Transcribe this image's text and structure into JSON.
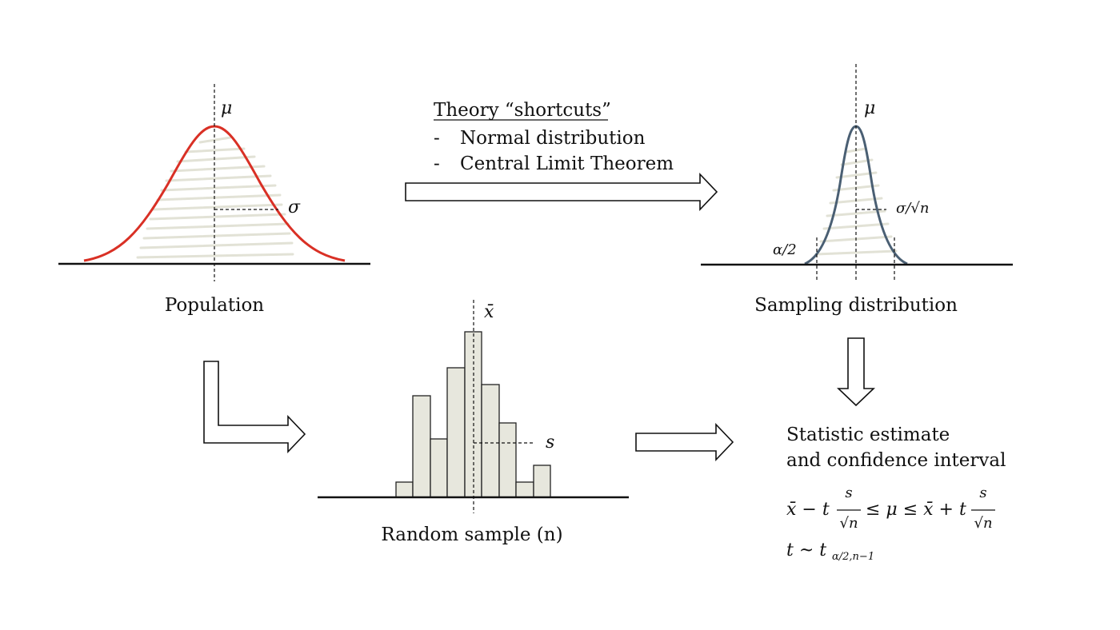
{
  "population": {
    "label": "Population",
    "mean_symbol": "μ",
    "sd_symbol": "σ",
    "curve_color": "#d93025"
  },
  "theory": {
    "heading": "Theory “shortcuts”",
    "items": [
      {
        "bullet": "-",
        "text": "Normal distribution"
      },
      {
        "bullet": "-",
        "text": "Central Limit Theorem"
      }
    ]
  },
  "sampling": {
    "label": "Sampling distribution",
    "mean_symbol": "μ",
    "se_symbol": "σ/√n",
    "tail_symbol": "α/2",
    "curve_color": "#4a5f73"
  },
  "sample": {
    "label": "Random sample (n)",
    "mean_symbol": "x̄",
    "sd_symbol": "s",
    "bar_color": "#e7e7dd"
  },
  "estimate": {
    "line1": "Statistic estimate",
    "line2": "and confidence interval",
    "formula": {
      "lhs": "x̄ − t",
      "frac_num": "s",
      "frac_den": "√n",
      "middle": "≤  μ  ≤  x̄ + t",
      "frac2_num": "s",
      "frac2_den": "√n"
    },
    "t_dist": {
      "base": "t ~ t",
      "subscript": "α/2,n−1"
    }
  }
}
